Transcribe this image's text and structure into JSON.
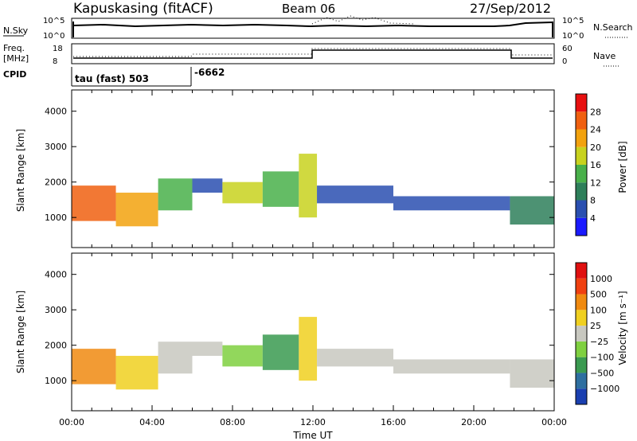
{
  "header": {
    "title": "Kapuskasing (fitACF)",
    "beam": "Beam 06",
    "date": "27/Sep/2012"
  },
  "top_panels": {
    "nsky_label": "N.Sky",
    "nsearch_label": "N.Search",
    "nsky_ticks": [
      "10^5",
      "10^0"
    ],
    "nsearch_ticks": [
      "10^5",
      "10^0"
    ],
    "freq_label_line1": "Freq.",
    "freq_label_line2": "[MHz]",
    "freq_ticks": [
      "18",
      "8"
    ],
    "nave_label": "Nave",
    "nave_ticks": [
      "60",
      "0"
    ],
    "cpid_label": "CPID",
    "cpid_mode": "tau (fast) 503",
    "cpid_mode_2": "-6662"
  },
  "chart_data": [
    {
      "type": "heatmap",
      "title": "",
      "xlabel": "",
      "ylabel": "Slant Range [km]",
      "x_ticks": [
        "00:00",
        "04:00",
        "08:00",
        "12:00",
        "16:00",
        "20:00",
        "00:00"
      ],
      "y_ticks": [
        1000,
        2000,
        3000,
        4000
      ],
      "xlim": [
        0,
        24
      ],
      "ylim": [
        150,
        4600
      ],
      "colorbar": {
        "label": "Power [dB]",
        "ticks": [
          "4",
          "8",
          "12",
          "16",
          "20",
          "24",
          "28"
        ],
        "colors": [
          "#1a1aff",
          "#2a4fb0",
          "#2e7f5a",
          "#49b04a",
          "#c8d21e",
          "#f2a20e",
          "#f06010",
          "#e81010"
        ]
      },
      "regions": [
        {
          "t0": 0.0,
          "t1": 2.2,
          "r0": 900,
          "r1": 1900,
          "level": 6
        },
        {
          "t0": 2.2,
          "t1": 4.3,
          "r0": 750,
          "r1": 1700,
          "level": 5
        },
        {
          "t0": 4.3,
          "t1": 6.0,
          "r0": 1200,
          "r1": 2100,
          "level": 3
        },
        {
          "t0": 6.0,
          "t1": 7.5,
          "r0": 1700,
          "r1": 2100,
          "level": 1
        },
        {
          "t0": 7.5,
          "t1": 9.5,
          "r0": 1400,
          "r1": 2000,
          "level": 4
        },
        {
          "t0": 9.5,
          "t1": 11.3,
          "r0": 1300,
          "r1": 2300,
          "level": 3
        },
        {
          "t0": 11.3,
          "t1": 12.2,
          "r0": 1000,
          "r1": 2800,
          "level": 4
        },
        {
          "t0": 12.2,
          "t1": 16.0,
          "r0": 1400,
          "r1": 1900,
          "level": 1
        },
        {
          "t0": 16.0,
          "t1": 21.8,
          "r0": 1200,
          "r1": 1600,
          "level": 1
        },
        {
          "t0": 21.8,
          "t1": 24.0,
          "r0": 800,
          "r1": 1600,
          "level": 2
        }
      ]
    },
    {
      "type": "heatmap",
      "title": "",
      "xlabel": "Time UT",
      "ylabel": "Slant Range [km]",
      "x_ticks": [
        "00:00",
        "04:00",
        "08:00",
        "12:00",
        "16:00",
        "20:00",
        "00:00"
      ],
      "y_ticks": [
        1000,
        2000,
        3000,
        4000
      ],
      "xlim": [
        0,
        24
      ],
      "ylim": [
        150,
        4600
      ],
      "colorbar": {
        "label": "Velocity [m s⁻¹]",
        "ticks": [
          "1000",
          "500",
          "100",
          "25",
          "−25",
          "−100",
          "−500",
          "−1000"
        ],
        "colors": [
          "#1a3fb0",
          "#2e6fa0",
          "#3a9a50",
          "#7fd040",
          "#c8c8c0",
          "#f0d020",
          "#f08a10",
          "#f04010",
          "#e01010"
        ]
      },
      "regions": [
        {
          "t0": 0.0,
          "t1": 2.2,
          "r0": 900,
          "r1": 1900,
          "level": 6
        },
        {
          "t0": 2.2,
          "t1": 4.3,
          "r0": 750,
          "r1": 1700,
          "level": 5
        },
        {
          "t0": 4.3,
          "t1": 6.0,
          "r0": 1200,
          "r1": 2100,
          "level": 4
        },
        {
          "t0": 6.0,
          "t1": 7.5,
          "r0": 1700,
          "r1": 2100,
          "level": 4
        },
        {
          "t0": 7.5,
          "t1": 9.5,
          "r0": 1400,
          "r1": 2000,
          "level": 3
        },
        {
          "t0": 9.5,
          "t1": 11.3,
          "r0": 1300,
          "r1": 2300,
          "level": 2
        },
        {
          "t0": 11.3,
          "t1": 12.2,
          "r0": 1000,
          "r1": 2800,
          "level": 5
        },
        {
          "t0": 12.2,
          "t1": 16.0,
          "r0": 1400,
          "r1": 1900,
          "level": 4
        },
        {
          "t0": 16.0,
          "t1": 21.8,
          "r0": 1200,
          "r1": 1600,
          "level": 4
        },
        {
          "t0": 21.8,
          "t1": 24.0,
          "r0": 800,
          "r1": 1600,
          "level": 4
        }
      ]
    }
  ]
}
